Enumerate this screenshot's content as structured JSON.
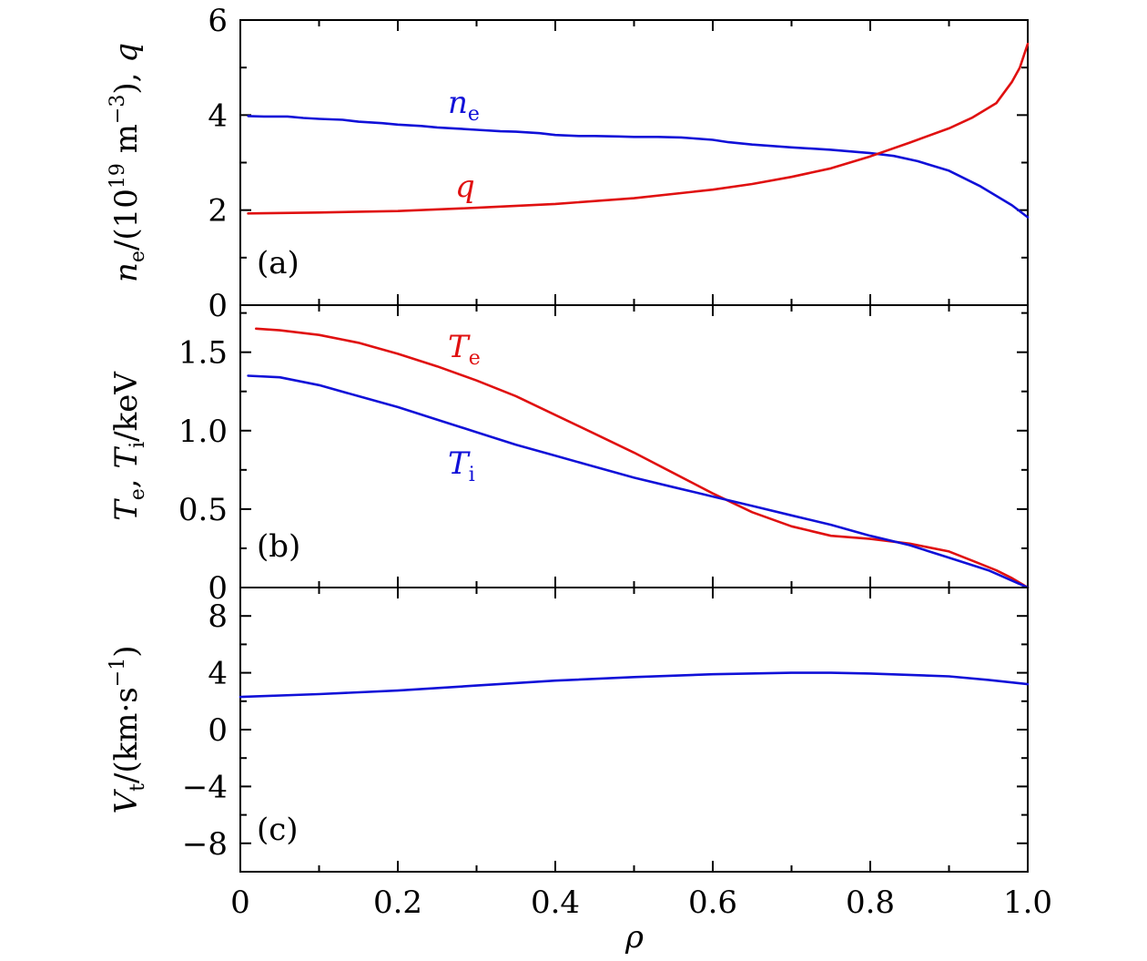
{
  "colors": {
    "blue": "#1010d8",
    "red": "#e01010"
  },
  "x_tick_labels": [
    "0",
    "0.2",
    "0.4",
    "0.6",
    "0.8",
    "1.0"
  ],
  "x_label": "ρ",
  "chart_data": [
    {
      "id": "a",
      "type": "line",
      "panel_label": "(a)",
      "ylabel": {
        "main": "n",
        "sub": "e",
        "rest": "/(10",
        "sup": "19",
        "unit": " m",
        "sup2": "−3",
        "tail": "), q"
      },
      "xlim": [
        0,
        1.0
      ],
      "ylim": [
        0,
        6
      ],
      "yticks": [
        0,
        2,
        4,
        6
      ],
      "ytick_labels": [
        "0",
        "2",
        "4",
        "6"
      ],
      "series": [
        {
          "key": "ne",
          "color": "blue",
          "label": {
            "main": "n",
            "sub": "e"
          },
          "x": [
            0.01,
            0.03,
            0.06,
            0.08,
            0.1,
            0.13,
            0.15,
            0.18,
            0.2,
            0.23,
            0.25,
            0.27,
            0.3,
            0.33,
            0.35,
            0.38,
            0.4,
            0.43,
            0.45,
            0.48,
            0.5,
            0.53,
            0.56,
            0.6,
            0.62,
            0.65,
            0.7,
            0.75,
            0.8,
            0.83,
            0.86,
            0.9,
            0.94,
            0.98,
            1.0
          ],
          "y": [
            3.98,
            3.97,
            3.97,
            3.94,
            3.92,
            3.9,
            3.86,
            3.83,
            3.8,
            3.77,
            3.74,
            3.72,
            3.69,
            3.66,
            3.65,
            3.62,
            3.58,
            3.56,
            3.56,
            3.55,
            3.54,
            3.54,
            3.53,
            3.48,
            3.43,
            3.38,
            3.32,
            3.27,
            3.2,
            3.14,
            3.03,
            2.83,
            2.5,
            2.1,
            1.85
          ]
        },
        {
          "key": "q",
          "color": "red",
          "label": {
            "main": "q"
          },
          "x": [
            0.01,
            0.1,
            0.2,
            0.3,
            0.4,
            0.5,
            0.6,
            0.65,
            0.7,
            0.75,
            0.8,
            0.85,
            0.9,
            0.93,
            0.96,
            0.98,
            0.99,
            1.0
          ],
          "y": [
            1.93,
            1.95,
            1.98,
            2.05,
            2.13,
            2.25,
            2.43,
            2.55,
            2.7,
            2.88,
            3.13,
            3.42,
            3.72,
            3.95,
            4.25,
            4.7,
            5.0,
            5.5
          ]
        }
      ]
    },
    {
      "id": "b",
      "type": "line",
      "panel_label": "(b)",
      "ylabel": {
        "main": "T",
        "sub": "e",
        "mid": ", ",
        "main2": "T",
        "sub2": "i",
        "tail": "/keV"
      },
      "xlim": [
        0,
        1.0
      ],
      "ylim": [
        0,
        1.8
      ],
      "yticks": [
        0,
        0.5,
        1.0,
        1.5
      ],
      "ytick_labels": [
        "0",
        "0.5",
        "1.0",
        "1.5"
      ],
      "series": [
        {
          "key": "Te",
          "color": "red",
          "label": {
            "main": "T",
            "sub": "e"
          },
          "x": [
            0.02,
            0.05,
            0.1,
            0.15,
            0.2,
            0.25,
            0.3,
            0.35,
            0.4,
            0.45,
            0.5,
            0.55,
            0.6,
            0.65,
            0.7,
            0.75,
            0.8,
            0.85,
            0.9,
            0.93,
            0.96,
            0.98,
            1.0
          ],
          "y": [
            1.65,
            1.64,
            1.61,
            1.56,
            1.49,
            1.41,
            1.32,
            1.22,
            1.1,
            0.98,
            0.86,
            0.73,
            0.6,
            0.48,
            0.39,
            0.33,
            0.31,
            0.28,
            0.23,
            0.17,
            0.11,
            0.06,
            0.0
          ]
        },
        {
          "key": "Ti",
          "color": "blue",
          "label": {
            "main": "T",
            "sub": "i"
          },
          "x": [
            0.01,
            0.05,
            0.1,
            0.15,
            0.2,
            0.25,
            0.3,
            0.35,
            0.4,
            0.45,
            0.5,
            0.55,
            0.6,
            0.65,
            0.7,
            0.75,
            0.8,
            0.85,
            0.9,
            0.95,
            1.0
          ],
          "y": [
            1.35,
            1.34,
            1.29,
            1.22,
            1.15,
            1.07,
            0.99,
            0.91,
            0.84,
            0.77,
            0.7,
            0.64,
            0.58,
            0.52,
            0.46,
            0.4,
            0.33,
            0.27,
            0.19,
            0.11,
            0.0
          ]
        }
      ]
    },
    {
      "id": "c",
      "type": "line",
      "panel_label": "(c)",
      "ylabel": {
        "main": "V",
        "sub": "t",
        "tail": "/(km·s",
        "sup": "−1",
        "tail2": ")"
      },
      "xlim": [
        0,
        1.0
      ],
      "ylim": [
        -10,
        10
      ],
      "yticks": [
        -8,
        -4,
        0,
        4,
        8
      ],
      "ytick_labels": [
        "−8",
        "−4",
        "0",
        "4",
        "8"
      ],
      "series": [
        {
          "key": "Vt",
          "color": "blue",
          "x": [
            0.0,
            0.1,
            0.2,
            0.3,
            0.4,
            0.5,
            0.6,
            0.7,
            0.75,
            0.8,
            0.9,
            0.95,
            1.0
          ],
          "y": [
            2.3,
            2.5,
            2.75,
            3.1,
            3.45,
            3.7,
            3.9,
            4.0,
            4.0,
            3.95,
            3.75,
            3.5,
            3.2
          ]
        }
      ]
    }
  ]
}
